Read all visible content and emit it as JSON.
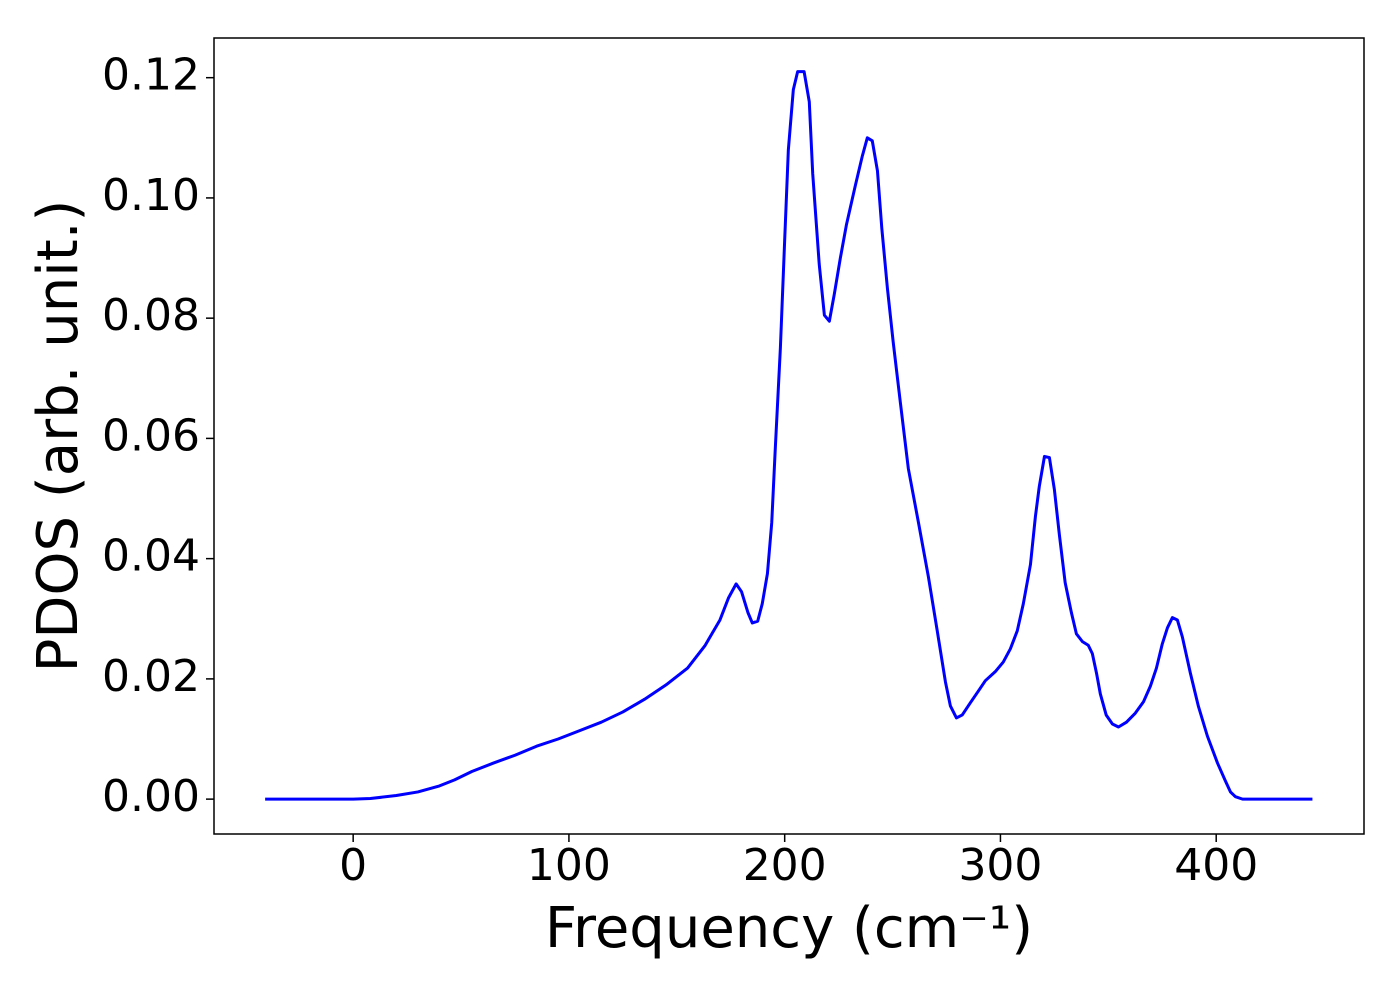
{
  "chart_data": {
    "type": "line",
    "xlabel": "Frequency (cm⁻¹)",
    "ylabel": "PDOS (arb. unit.)",
    "xlim": [
      -64.5,
      468.5
    ],
    "ylim": [
      -0.0058,
      0.1266
    ],
    "xticks": [
      0,
      100,
      200,
      300,
      400
    ],
    "yticks": [
      {
        "value": 0,
        "label": "0.00"
      },
      {
        "value": 0.02,
        "label": "0.02"
      },
      {
        "value": 0.04,
        "label": "0.04"
      },
      {
        "value": 0.06,
        "label": "0.06"
      },
      {
        "value": 0.08,
        "label": "0.08"
      },
      {
        "value": 0.1,
        "label": "0.10"
      },
      {
        "value": 0.12,
        "label": "0.12"
      }
    ],
    "grid": false,
    "series": [
      {
        "name": "PDOS",
        "color": "#0000ff",
        "x": [
          -40.8,
          0,
          8,
          20,
          30,
          40,
          47,
          55,
          65,
          75,
          85,
          95,
          105,
          115,
          125,
          135,
          145,
          155,
          163,
          170,
          174,
          177.5,
          180,
          183,
          185,
          187.5,
          189.6,
          192,
          194,
          195.6,
          198,
          200,
          201.7,
          204,
          206,
          209,
          211.4,
          213,
          216,
          218.4,
          220.7,
          223,
          225.8,
          228.6,
          232.7,
          236,
          238.3,
          240.6,
          243,
          245,
          247.6,
          250.3,
          253.6,
          257.3,
          262,
          266.6,
          270.7,
          274.5,
          276.8,
          279.6,
          282.3,
          286,
          289.8,
          293,
          297.6,
          301.3,
          304.6,
          307.8,
          310.6,
          313.9,
          316.2,
          318,
          320.4,
          322.7,
          325,
          327.3,
          330,
          332.9,
          335.2,
          338,
          340.7,
          342.6,
          344.5,
          346.3,
          349,
          351.9,
          354.7,
          358.4,
          362.5,
          366.3,
          369.5,
          372.3,
          375,
          377.4,
          379.7,
          382,
          384.3,
          388,
          391.7,
          395.9,
          400.6,
          404.3,
          406.6,
          408.9,
          412.2,
          444.6
        ],
        "values": [
          0,
          0,
          0.0001,
          0.0006,
          0.0012,
          0.0022,
          0.0032,
          0.0046,
          0.006,
          0.0073,
          0.0088,
          0.01,
          0.0114,
          0.0128,
          0.0145,
          0.0166,
          0.019,
          0.0218,
          0.0255,
          0.0298,
          0.0335,
          0.0358,
          0.0345,
          0.031,
          0.0293,
          0.0296,
          0.0325,
          0.0375,
          0.046,
          0.058,
          0.075,
          0.093,
          0.108,
          0.118,
          0.121,
          0.121,
          0.116,
          0.104,
          0.089,
          0.0805,
          0.0795,
          0.084,
          0.09,
          0.0955,
          0.102,
          0.107,
          0.11,
          0.1095,
          0.1045,
          0.095,
          0.085,
          0.076,
          0.066,
          0.055,
          0.046,
          0.037,
          0.028,
          0.0195,
          0.0155,
          0.0135,
          0.014,
          0.016,
          0.018,
          0.0197,
          0.0212,
          0.0228,
          0.025,
          0.028,
          0.0325,
          0.039,
          0.047,
          0.052,
          0.057,
          0.0568,
          0.0515,
          0.044,
          0.036,
          0.031,
          0.0275,
          0.0262,
          0.0256,
          0.0242,
          0.021,
          0.0175,
          0.014,
          0.0125,
          0.012,
          0.0128,
          0.0143,
          0.0162,
          0.0188,
          0.0218,
          0.0258,
          0.0285,
          0.0302,
          0.0298,
          0.027,
          0.021,
          0.0155,
          0.0105,
          0.006,
          0.003,
          0.0012,
          0.0004,
          0,
          0
        ]
      }
    ]
  }
}
